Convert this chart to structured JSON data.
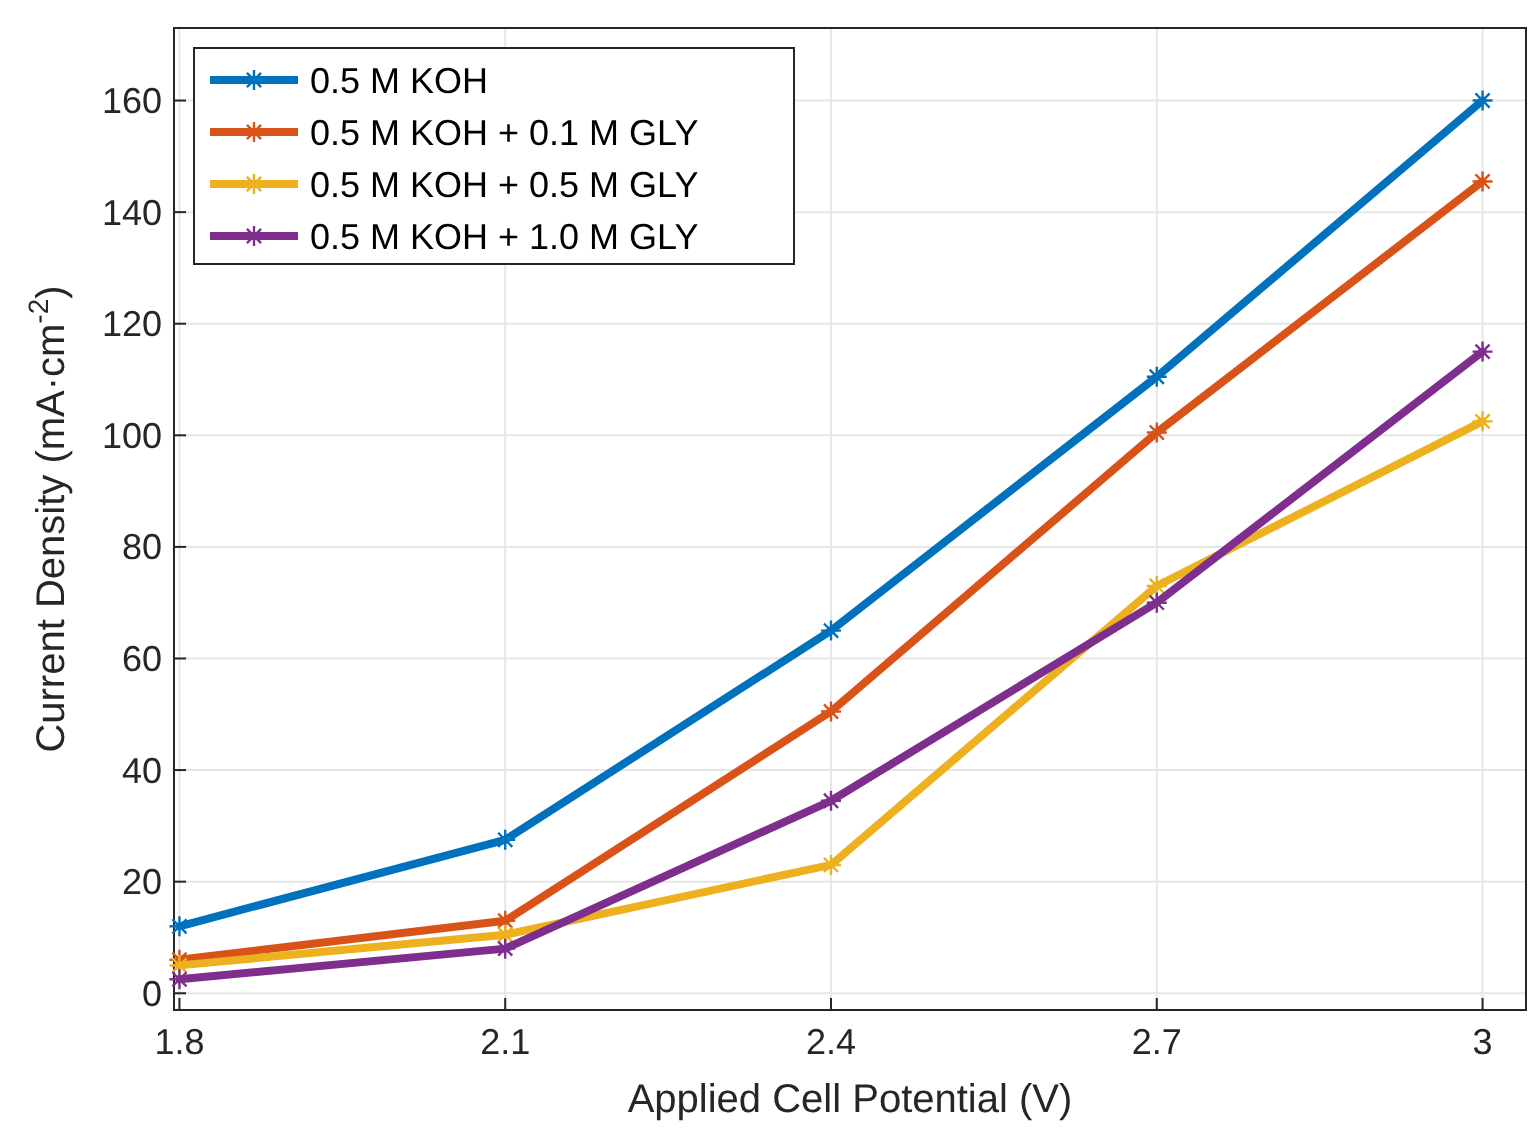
{
  "chart_data": {
    "type": "line",
    "xlabel": "Applied Cell Potential (V)",
    "ylabel": "Current Density (mA·cm$^{-2}$)",
    "x": [
      1.8,
      2.1,
      2.4,
      2.7,
      3
    ],
    "xlim": [
      1.795,
      3.04
    ],
    "xticks": [
      1.8,
      2.1,
      2.4,
      2.7,
      3
    ],
    "ylim": [
      -3,
      173
    ],
    "yticks": [
      0,
      20,
      40,
      60,
      80,
      100,
      120,
      140,
      160
    ],
    "grid": true,
    "legend": "top left",
    "marker": "cross",
    "line_style": "solid",
    "series": [
      {
        "name": "0.5 M KOH",
        "color": "#0072bd",
        "values": [
          12,
          27.5,
          65,
          110.5,
          160
        ]
      },
      {
        "name": "0.5 M KOH + 0.1 M GLY",
        "color": "#d95319",
        "values": [
          6,
          13,
          50.5,
          100.5,
          145.5
        ]
      },
      {
        "name": "0.5 M KOH + 0.5 M GLY",
        "color": "#edb120",
        "values": [
          5,
          10.5,
          23,
          73,
          102.5
        ]
      },
      {
        "name": "0.5 M KOH + 1.0 M GLY",
        "color": "#7e2f8e",
        "values": [
          2.5,
          8,
          34.5,
          70,
          115
        ]
      }
    ]
  }
}
